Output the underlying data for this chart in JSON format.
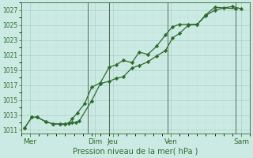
{
  "bg_color": "#cceae4",
  "grid_color_major": "#aacfc8",
  "grid_color_minor": "#bbddd8",
  "line_color": "#2d6b2d",
  "marker_color": "#2d6b2d",
  "xlabel": "Pression niveau de la mer( hPa )",
  "ylim": [
    1010.5,
    1028.0
  ],
  "yticks": [
    1011,
    1013,
    1015,
    1017,
    1019,
    1021,
    1023,
    1025,
    1027
  ],
  "xlim": [
    0,
    13.0
  ],
  "xtick_labels": [
    "Mer",
    "Dim",
    "Jeu",
    "Ven",
    "Sam"
  ],
  "xtick_positions": [
    0.5,
    4.2,
    5.2,
    8.5,
    12.5
  ],
  "vline_positions": [
    3.8,
    5.0,
    8.3,
    12.2
  ],
  "vline_color": "#556655",
  "line1_x": [
    0.2,
    0.6,
    0.9,
    1.4,
    1.8,
    2.2,
    2.5,
    2.7,
    2.9,
    3.1,
    3.3,
    4.0,
    4.5,
    5.0,
    5.4,
    5.8,
    6.3,
    6.7,
    7.2,
    7.7,
    8.2,
    8.6,
    9.0,
    9.5,
    10.0,
    10.5,
    11.0,
    11.5,
    12.0,
    12.5
  ],
  "line1_y": [
    1011.3,
    1012.7,
    1012.7,
    1012.1,
    1011.8,
    1011.8,
    1011.8,
    1011.9,
    1012.0,
    1012.0,
    1012.2,
    1014.9,
    1017.2,
    1017.5,
    1017.9,
    1018.1,
    1019.3,
    1019.6,
    1020.1,
    1020.9,
    1021.6,
    1023.3,
    1023.9,
    1025.0,
    1025.1,
    1026.3,
    1027.0,
    1027.3,
    1027.5,
    1027.2
  ],
  "line2_x": [
    0.2,
    0.6,
    0.9,
    1.4,
    1.8,
    2.2,
    2.5,
    2.7,
    2.9,
    3.2,
    3.6,
    4.0,
    4.5,
    5.0,
    5.4,
    5.8,
    6.3,
    6.7,
    7.2,
    7.7,
    8.2,
    8.6,
    9.0,
    9.5,
    10.0,
    10.5,
    11.0,
    12.2
  ],
  "line2_y": [
    1011.3,
    1012.7,
    1012.7,
    1012.1,
    1011.8,
    1011.8,
    1011.8,
    1011.9,
    1012.5,
    1013.3,
    1014.5,
    1016.7,
    1017.3,
    1019.4,
    1019.7,
    1020.3,
    1020.0,
    1021.4,
    1021.1,
    1022.2,
    1023.7,
    1024.8,
    1025.1,
    1025.1,
    1025.1,
    1026.4,
    1027.4,
    1027.2
  ]
}
